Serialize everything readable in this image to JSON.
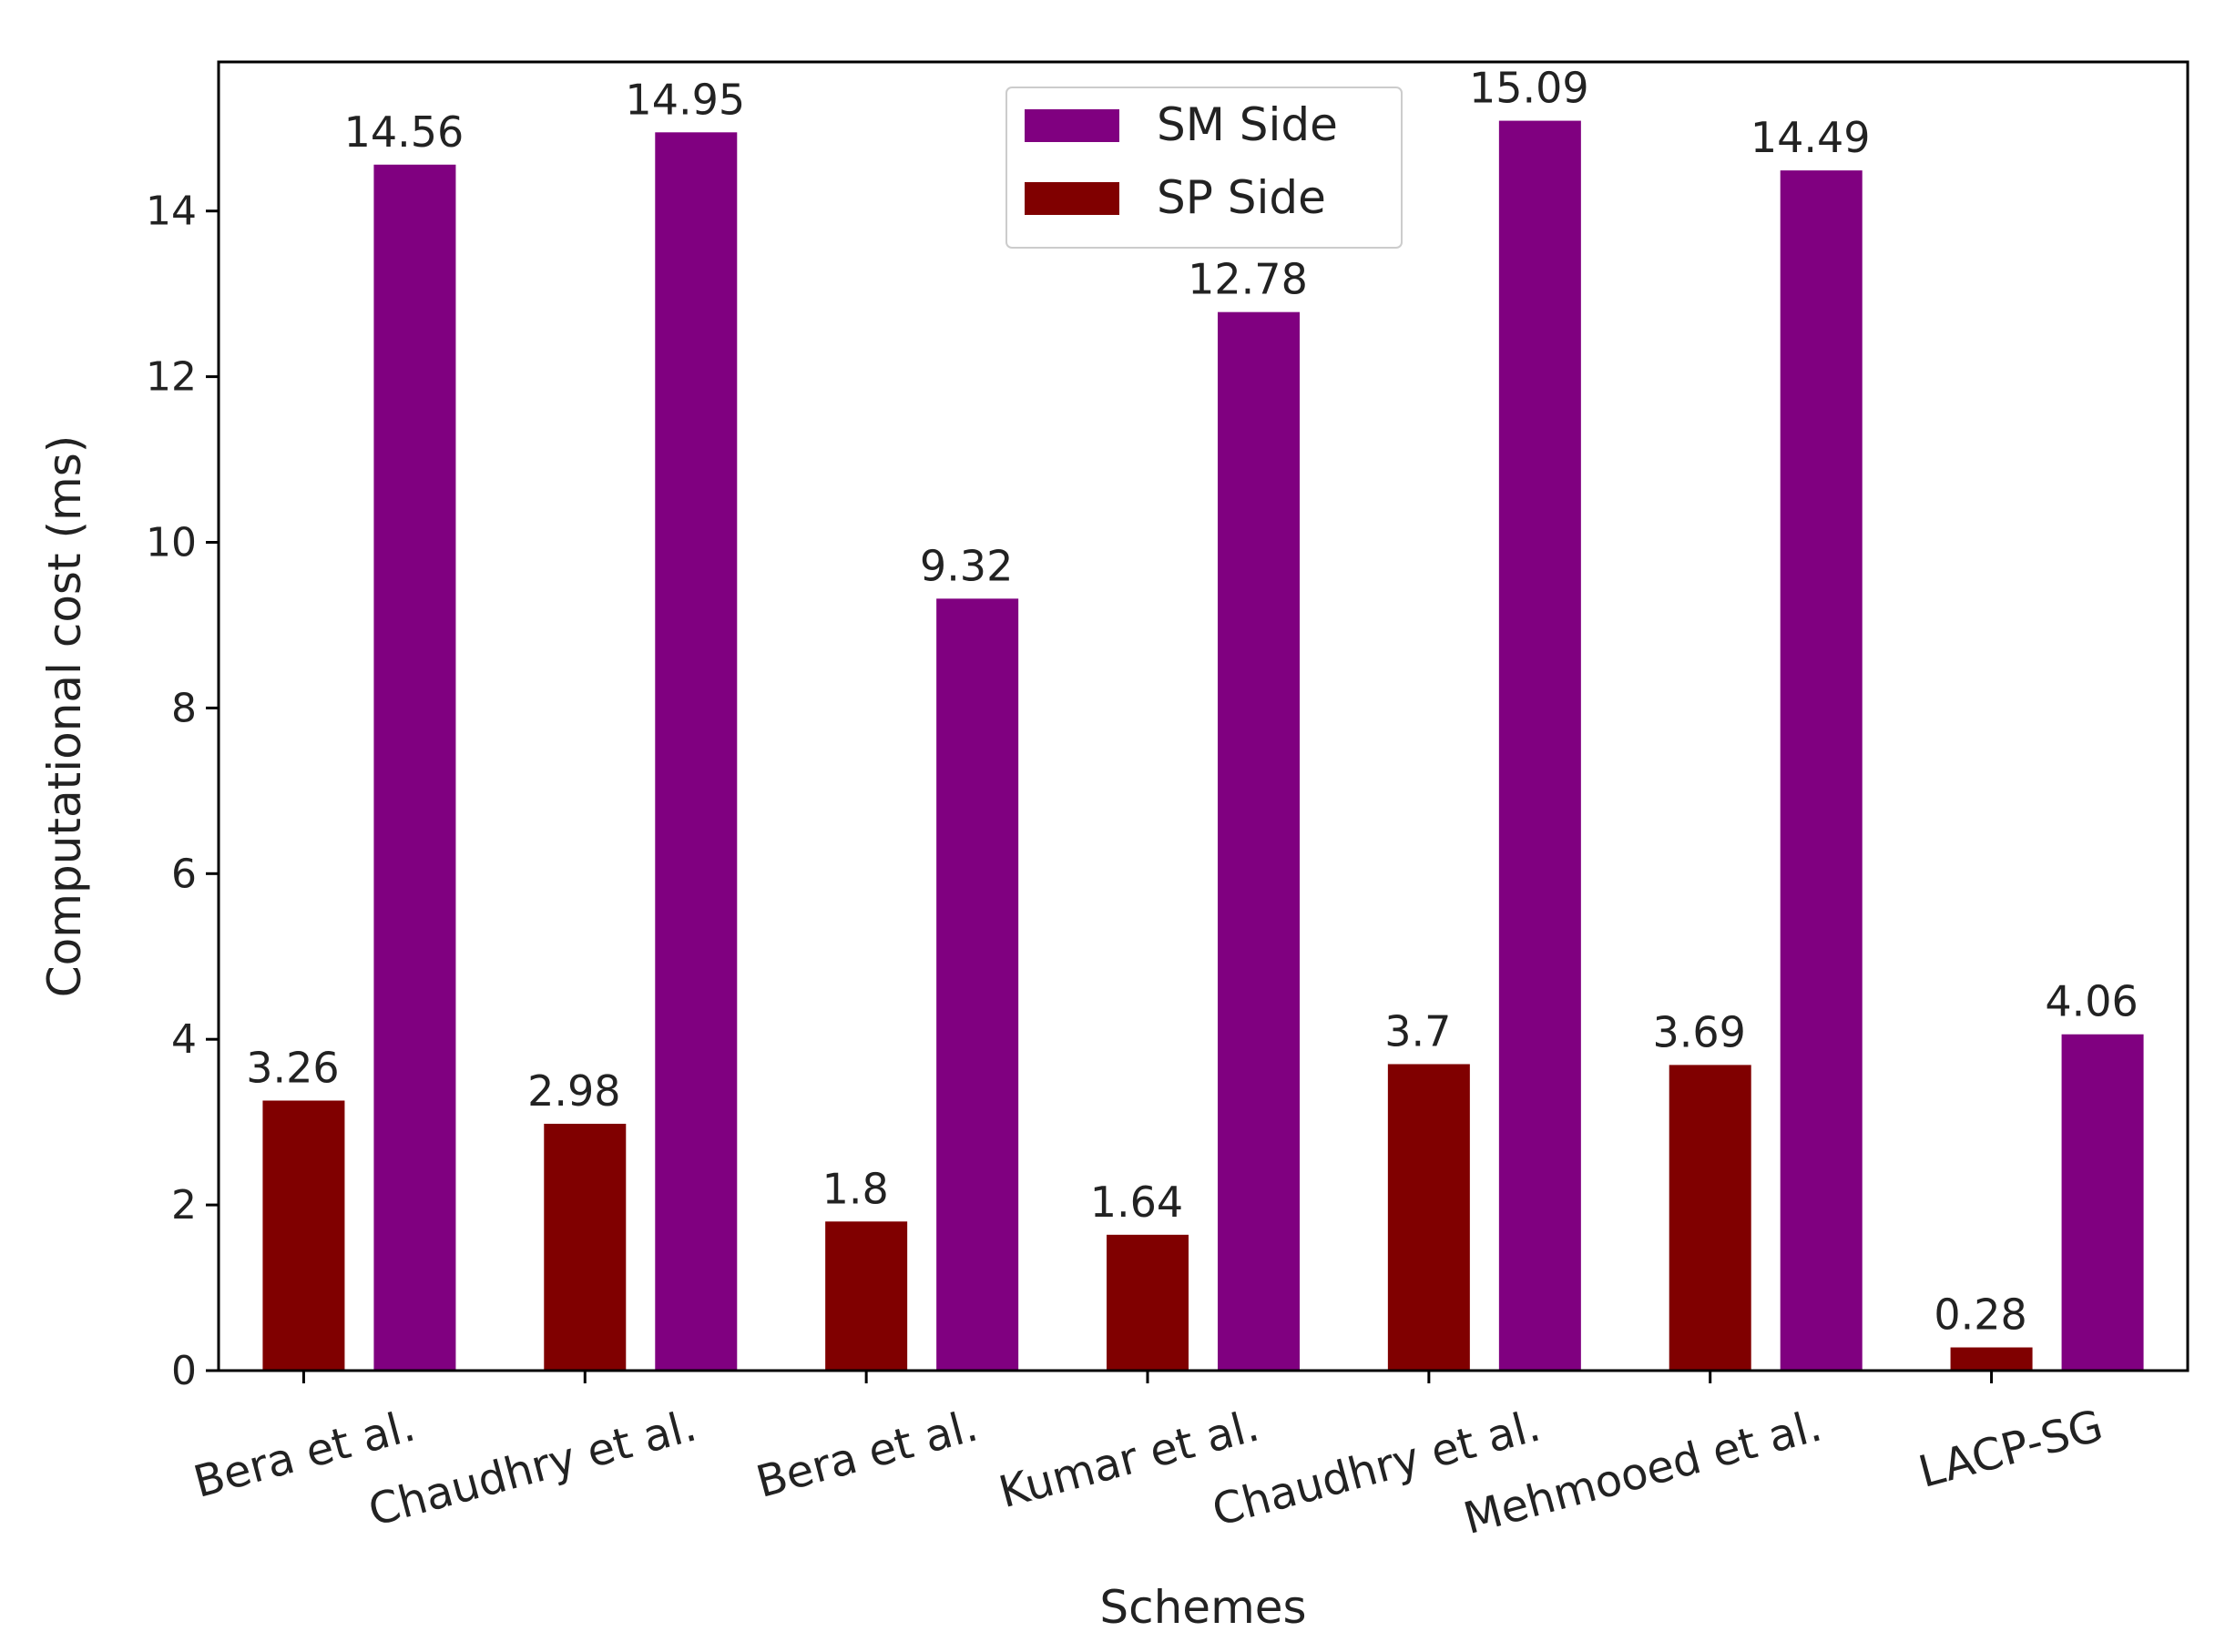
{
  "chart_data": {
    "type": "bar",
    "title": "",
    "xlabel": "Schemes",
    "ylabel": "Computational cost (ms)",
    "ylim": [
      0,
      15.8
    ],
    "yticks": [
      0,
      2,
      4,
      6,
      8,
      10,
      12,
      14
    ],
    "categories": [
      "Bera et al.",
      "Chaudhry et al.",
      "Bera et al.",
      "Kumar et al.",
      "Chaudhry et al.",
      "Mehmooed et al.",
      "LACP-SG"
    ],
    "series": [
      {
        "name": "SP Side",
        "color": "#800000",
        "values": [
          3.26,
          2.98,
          1.8,
          1.64,
          3.7,
          3.69,
          0.28
        ],
        "labels": [
          "3.26",
          "2.98",
          "1.8",
          "1.64",
          "3.7",
          "3.69",
          "0.28"
        ]
      },
      {
        "name": "SM Side",
        "color": "#800080",
        "values": [
          14.56,
          14.95,
          9.32,
          12.78,
          15.09,
          14.49,
          4.06
        ],
        "labels": [
          "14.56",
          "14.95",
          "9.32",
          "12.78",
          "15.09",
          "14.49",
          "4.06"
        ]
      }
    ],
    "legend": {
      "position": "top-center",
      "entries": [
        {
          "label": "SM Side",
          "color": "#800080"
        },
        {
          "label": "SP Side",
          "color": "#800000"
        }
      ]
    },
    "grid": false
  }
}
